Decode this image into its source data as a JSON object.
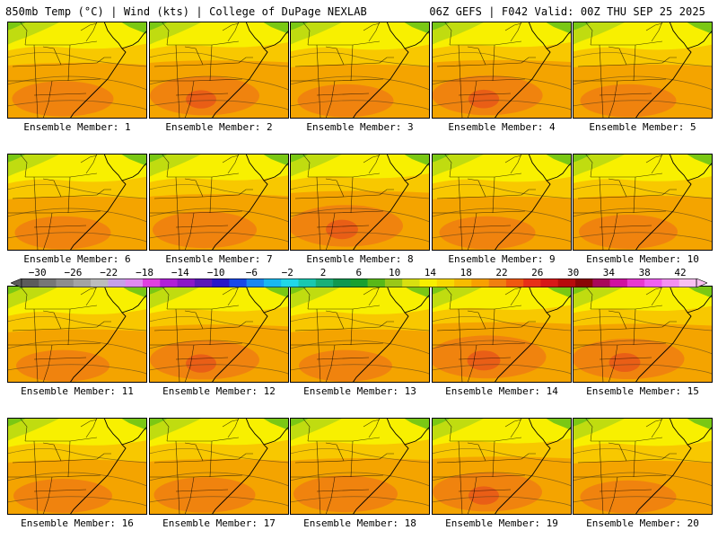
{
  "header": {
    "left": "850mb Temp (°C) | Wind (kts) | College of DuPage NEXLAB",
    "right": "06Z GEFS | F042 Valid: 00Z THU SEP 25 2025"
  },
  "members": [
    {
      "label": "Ensemble Member: 1",
      "warmth": 0.55
    },
    {
      "label": "Ensemble Member: 2",
      "warmth": 0.7
    },
    {
      "label": "Ensemble Member: 3",
      "warmth": 0.45
    },
    {
      "label": "Ensemble Member: 4",
      "warmth": 0.72
    },
    {
      "label": "Ensemble Member: 5",
      "warmth": 0.45
    },
    {
      "label": "Ensemble Member: 6",
      "warmth": 0.45
    },
    {
      "label": "Ensemble Member: 7",
      "warmth": 0.6
    },
    {
      "label": "Ensemble Member: 8",
      "warmth": 0.8
    },
    {
      "label": "Ensemble Member: 9",
      "warmth": 0.45
    },
    {
      "label": "Ensemble Member: 10",
      "warmth": 0.5
    },
    {
      "label": "Ensemble Member: 11",
      "warmth": 0.4
    },
    {
      "label": "Ensemble Member: 12",
      "warmth": 0.7
    },
    {
      "label": "Ensemble Member: 13",
      "warmth": 0.4
    },
    {
      "label": "Ensemble Member: 14",
      "warmth": 0.85
    },
    {
      "label": "Ensemble Member: 15",
      "warmth": 0.75
    },
    {
      "label": "Ensemble Member: 16",
      "warmth": 0.5
    },
    {
      "label": "Ensemble Member: 17",
      "warmth": 0.55
    },
    {
      "label": "Ensemble Member: 18",
      "warmth": 0.6
    },
    {
      "label": "Ensemble Member: 19",
      "warmth": 0.7
    },
    {
      "label": "Ensemble Member: 20",
      "warmth": 0.45
    }
  ],
  "colorbar": {
    "ticks": [
      "−30",
      "−26",
      "−22",
      "−18",
      "−14",
      "−10",
      "−6",
      "−2",
      "2",
      "6",
      "10",
      "14",
      "18",
      "22",
      "26",
      "30",
      "34",
      "38",
      "42"
    ],
    "colors": [
      "#5c5c5c",
      "#777777",
      "#8e8e8e",
      "#a4a4a4",
      "#bcbcbc",
      "#c6a0e8",
      "#e08af0",
      "#e040e0",
      "#b020d8",
      "#8a18c8",
      "#5a18b8",
      "#2818c8",
      "#1848e8",
      "#1a88f0",
      "#18b8f0",
      "#20d8e8",
      "#18c8b0",
      "#18b078",
      "#109850",
      "#18a030",
      "#58b818",
      "#9ac818",
      "#d8e010",
      "#f8f000",
      "#f8d800",
      "#f8bc00",
      "#f8a000",
      "#f08010",
      "#f05810",
      "#e83018",
      "#d81818",
      "#b80c0c",
      "#8a0606",
      "#a8085a",
      "#d010a0",
      "#e838d0",
      "#f060f0",
      "#f490f0",
      "#f8c0f0"
    ]
  },
  "palette": {
    "green": "#7ac814",
    "yellowgreen": "#c0dc10",
    "yellow": "#f8f000",
    "gold": "#f8c800",
    "orange": "#f4a400",
    "deep_orange": "#f08010",
    "red_orange": "#e85818",
    "boundary": "#000000"
  }
}
